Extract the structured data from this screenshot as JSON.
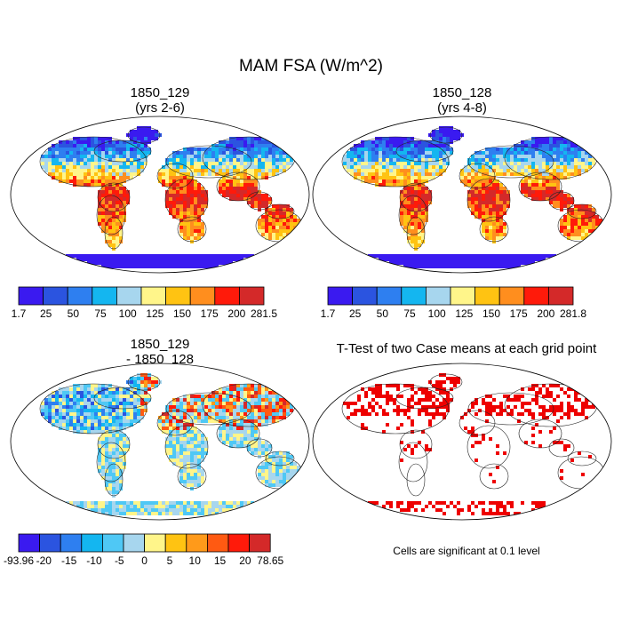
{
  "title": "MAM FSA (W/m^2)",
  "panels": [
    {
      "id": "p1",
      "line1": "1850_129",
      "line2": "(yrs 2-6)"
    },
    {
      "id": "p2",
      "line1": "1850_128",
      "line2": "(yrs 4-8)"
    },
    {
      "id": "p3",
      "line1": "1850_129",
      "line2": "- 1850_128"
    },
    {
      "id": "p4",
      "line1": "T-Test of two Case means at each grid point",
      "line2": ""
    }
  ],
  "colorbars": {
    "abs1": {
      "colors": [
        "#3a1af0",
        "#2b54e0",
        "#2e7ff0",
        "#14b6f0",
        "#a7d6ee",
        "#fff58a",
        "#ffc312",
        "#ff8e1e",
        "#ff1a0a",
        "#d42929"
      ],
      "ticks": [
        "1.7",
        "25",
        "50",
        "75",
        "100",
        "125",
        "150",
        "175",
        "200",
        "281.5"
      ]
    },
    "abs2": {
      "colors": [
        "#3a1af0",
        "#2b54e0",
        "#2e7ff0",
        "#14b6f0",
        "#a7d6ee",
        "#fff58a",
        "#ffc312",
        "#ff8e1e",
        "#ff1a0a",
        "#d42929"
      ],
      "ticks": [
        "1.7",
        "25",
        "50",
        "75",
        "100",
        "125",
        "150",
        "175",
        "200",
        "281.8"
      ]
    },
    "diff": {
      "colors": [
        "#3a1af0",
        "#2b54e0",
        "#2e7ff0",
        "#14b6f0",
        "#4fc8f5",
        "#a7d6ee",
        "#fff58a",
        "#ffc312",
        "#ff9a1a",
        "#ff5a12",
        "#ff1a0a",
        "#d42929"
      ],
      "ticks": [
        "-93.96",
        "-20",
        "-15",
        "-10",
        "-5",
        "0",
        "5",
        "10",
        "15",
        "20",
        "78.65"
      ]
    }
  },
  "note": "Cells are significant at 0.1 level"
}
